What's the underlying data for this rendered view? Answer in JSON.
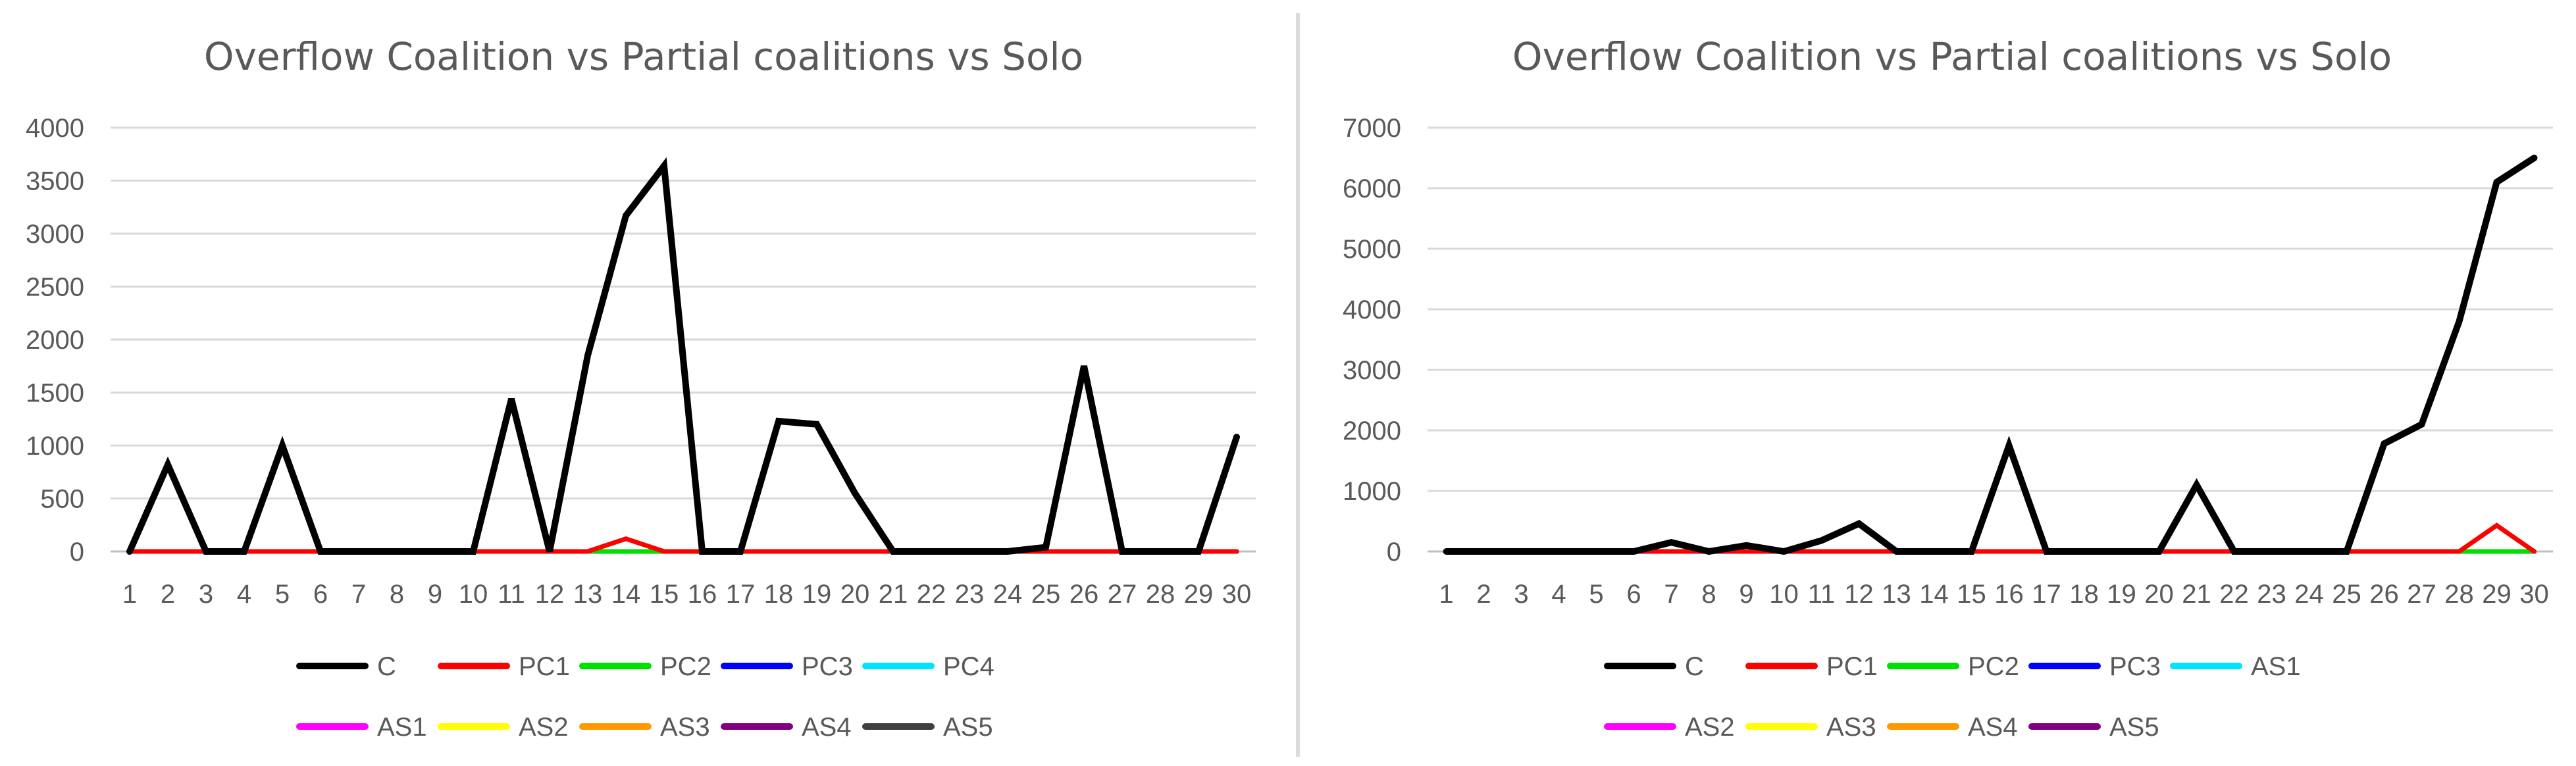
{
  "chart_data": [
    {
      "type": "line",
      "title": "Overflow Coalition vs Partial coalitions vs Solo",
      "xlabel": "",
      "ylabel": "",
      "categories": [
        "1",
        "2",
        "3",
        "4",
        "5",
        "6",
        "7",
        "8",
        "9",
        "10",
        "11",
        "12",
        "13",
        "14",
        "15",
        "16",
        "17",
        "18",
        "19",
        "20",
        "21",
        "22",
        "23",
        "24",
        "25",
        "26",
        "27",
        "28",
        "29",
        "30"
      ],
      "ylim": [
        0,
        4000
      ],
      "yticks": [
        "0",
        "500",
        "1000",
        "1500",
        "2000",
        "2500",
        "3000",
        "3500",
        "4000"
      ],
      "grid": true,
      "legend_placement": "bottom",
      "legend_rows": [
        [
          "C",
          "PC1",
          "PC2",
          "PC3",
          "PC4"
        ],
        [
          "AS1",
          "AS2",
          "AS3",
          "AS4",
          "AS5"
        ]
      ],
      "series": [
        {
          "name": "C",
          "color": "#000000",
          "values": [
            0,
            820,
            0,
            0,
            1000,
            0,
            0,
            0,
            0,
            0,
            1440,
            0,
            1850,
            3170,
            3640,
            0,
            0,
            1230,
            1200,
            550,
            0,
            0,
            0,
            0,
            40,
            1750,
            0,
            0,
            0,
            1080
          ]
        },
        {
          "name": "PC1",
          "color": "#ff0000",
          "values": [
            0,
            0,
            0,
            0,
            0,
            0,
            0,
            0,
            0,
            0,
            0,
            0,
            0,
            120,
            0,
            0,
            0,
            0,
            0,
            0,
            0,
            0,
            0,
            0,
            0,
            0,
            0,
            0,
            0,
            0
          ]
        },
        {
          "name": "PC2",
          "color": "#00e000",
          "values": [
            0,
            0,
            0,
            0,
            0,
            0,
            0,
            0,
            0,
            0,
            0,
            0,
            0,
            0,
            0,
            0,
            0,
            0,
            0,
            0,
            0,
            0,
            0,
            0,
            0,
            0,
            0,
            0,
            0,
            0
          ]
        },
        {
          "name": "PC3",
          "color": "#0000ff",
          "values": [
            0,
            0,
            0,
            0,
            0,
            0,
            0,
            0,
            0,
            0,
            0,
            0,
            0,
            0,
            0,
            0,
            0,
            0,
            0,
            0,
            0,
            0,
            0,
            0,
            0,
            0,
            0,
            0,
            0,
            0
          ]
        },
        {
          "name": "PC4",
          "color": "#00e5ff",
          "values": [
            0,
            0,
            0,
            0,
            0,
            0,
            0,
            0,
            0,
            0,
            0,
            0,
            0,
            0,
            0,
            0,
            0,
            0,
            0,
            0,
            0,
            0,
            0,
            0,
            0,
            0,
            0,
            0,
            0,
            0
          ]
        },
        {
          "name": "AS1",
          "color": "#ff00ff",
          "values": [
            0,
            0,
            0,
            0,
            0,
            0,
            0,
            0,
            0,
            0,
            0,
            0,
            0,
            0,
            0,
            0,
            0,
            0,
            0,
            0,
            0,
            0,
            0,
            0,
            0,
            0,
            0,
            0,
            0,
            0
          ]
        },
        {
          "name": "AS2",
          "color": "#ffff00",
          "values": [
            0,
            0,
            0,
            0,
            0,
            0,
            0,
            0,
            0,
            0,
            0,
            0,
            0,
            0,
            0,
            0,
            0,
            0,
            0,
            0,
            0,
            0,
            0,
            0,
            0,
            0,
            0,
            0,
            0,
            0
          ]
        },
        {
          "name": "AS3",
          "color": "#ff9900",
          "values": [
            0,
            0,
            0,
            0,
            0,
            0,
            0,
            0,
            0,
            0,
            0,
            0,
            0,
            0,
            0,
            0,
            0,
            0,
            0,
            0,
            0,
            0,
            0,
            0,
            0,
            0,
            0,
            0,
            0,
            0
          ]
        },
        {
          "name": "AS4",
          "color": "#800080",
          "values": [
            0,
            0,
            0,
            0,
            0,
            0,
            0,
            0,
            0,
            0,
            0,
            0,
            0,
            0,
            0,
            0,
            0,
            0,
            0,
            0,
            0,
            0,
            0,
            0,
            0,
            0,
            0,
            0,
            0,
            0
          ]
        },
        {
          "name": "AS5",
          "color": "#404040",
          "values": [
            0,
            0,
            0,
            0,
            0,
            0,
            0,
            0,
            0,
            0,
            0,
            0,
            0,
            0,
            0,
            0,
            0,
            0,
            0,
            0,
            0,
            0,
            0,
            0,
            0,
            0,
            0,
            0,
            0,
            0
          ]
        }
      ]
    },
    {
      "type": "line",
      "title": "Overflow Coalition vs Partial coalitions vs Solo",
      "xlabel": "",
      "ylabel": "",
      "categories": [
        "1",
        "2",
        "3",
        "4",
        "5",
        "6",
        "7",
        "8",
        "9",
        "10",
        "11",
        "12",
        "13",
        "14",
        "15",
        "16",
        "17",
        "18",
        "19",
        "20",
        "21",
        "22",
        "23",
        "24",
        "25",
        "26",
        "27",
        "28",
        "29",
        "30"
      ],
      "ylim": [
        0,
        7000
      ],
      "yticks": [
        "0",
        "1000",
        "2000",
        "3000",
        "4000",
        "5000",
        "6000",
        "7000"
      ],
      "grid": true,
      "legend_placement": "bottom",
      "legend_rows": [
        [
          "C",
          "PC1",
          "PC2",
          "PC3",
          "AS1"
        ],
        [
          "AS2",
          "AS3",
          "AS4",
          "AS5"
        ]
      ],
      "series": [
        {
          "name": "C",
          "color": "#000000",
          "values": [
            0,
            0,
            0,
            0,
            0,
            0,
            150,
            0,
            100,
            0,
            180,
            460,
            0,
            0,
            0,
            1750,
            0,
            0,
            0,
            0,
            1100,
            0,
            0,
            0,
            0,
            1780,
            2100,
            3800,
            6100,
            6500
          ]
        },
        {
          "name": "PC1",
          "color": "#ff0000",
          "values": [
            0,
            0,
            0,
            0,
            0,
            0,
            0,
            0,
            0,
            0,
            0,
            0,
            0,
            0,
            0,
            0,
            0,
            0,
            0,
            0,
            0,
            0,
            0,
            0,
            0,
            0,
            0,
            0,
            430,
            0
          ]
        },
        {
          "name": "PC2",
          "color": "#00e000",
          "values": [
            0,
            0,
            0,
            0,
            0,
            0,
            0,
            0,
            0,
            0,
            0,
            0,
            0,
            0,
            0,
            0,
            0,
            0,
            0,
            0,
            0,
            0,
            0,
            0,
            0,
            0,
            0,
            0,
            0,
            0
          ]
        },
        {
          "name": "PC3",
          "color": "#0000ff",
          "values": [
            0,
            0,
            0,
            0,
            0,
            0,
            0,
            0,
            0,
            0,
            0,
            0,
            0,
            0,
            0,
            0,
            0,
            0,
            0,
            0,
            0,
            0,
            0,
            0,
            0,
            0,
            0,
            0,
            0,
            0
          ]
        },
        {
          "name": "AS1",
          "color": "#00e5ff",
          "values": [
            0,
            0,
            0,
            0,
            0,
            0,
            0,
            0,
            0,
            0,
            0,
            0,
            0,
            0,
            0,
            0,
            0,
            0,
            0,
            0,
            0,
            0,
            0,
            0,
            0,
            0,
            0,
            0,
            0,
            0
          ]
        },
        {
          "name": "AS2",
          "color": "#ff00ff",
          "values": [
            0,
            0,
            0,
            0,
            0,
            0,
            0,
            0,
            0,
            0,
            0,
            0,
            0,
            0,
            0,
            0,
            0,
            0,
            0,
            0,
            0,
            0,
            0,
            0,
            0,
            0,
            0,
            0,
            0,
            0
          ]
        },
        {
          "name": "AS3",
          "color": "#ffff00",
          "values": [
            0,
            0,
            0,
            0,
            0,
            0,
            0,
            0,
            0,
            0,
            0,
            0,
            0,
            0,
            0,
            0,
            0,
            0,
            0,
            0,
            0,
            0,
            0,
            0,
            0,
            0,
            0,
            0,
            0,
            0
          ]
        },
        {
          "name": "AS4",
          "color": "#ff9900",
          "values": [
            0,
            0,
            0,
            0,
            0,
            0,
            0,
            0,
            0,
            0,
            0,
            0,
            0,
            0,
            0,
            0,
            0,
            0,
            0,
            0,
            0,
            0,
            0,
            0,
            0,
            0,
            0,
            0,
            0,
            0
          ]
        },
        {
          "name": "AS5",
          "color": "#800080",
          "values": [
            0,
            0,
            0,
            0,
            0,
            0,
            0,
            0,
            0,
            0,
            0,
            0,
            0,
            0,
            0,
            0,
            0,
            0,
            0,
            0,
            0,
            0,
            0,
            0,
            0,
            0,
            0,
            0,
            0,
            0
          ]
        }
      ]
    }
  ]
}
